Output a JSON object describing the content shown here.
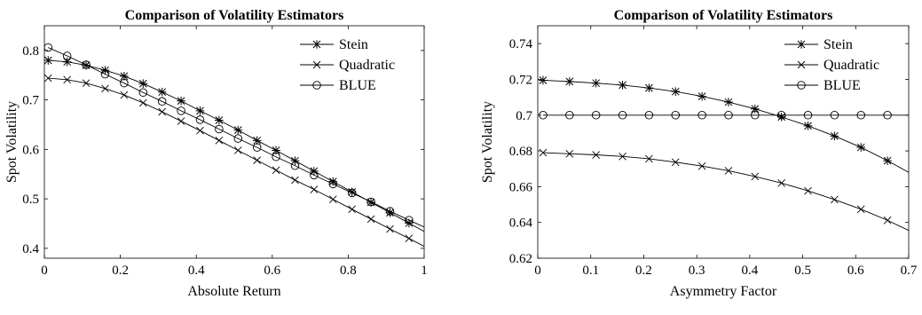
{
  "chart_data": [
    {
      "type": "line",
      "title": "Comparison of Volatility Estimators",
      "xlabel": "Absolute Return",
      "ylabel": "Spot Volatility",
      "xlim": [
        0,
        1
      ],
      "ylim": [
        0.38,
        0.85
      ],
      "xticks": [
        0,
        0.2,
        0.4,
        0.6,
        0.8,
        1
      ],
      "xtick_labels": [
        "0",
        "0.2",
        "0.4",
        "0.6",
        "0.8",
        "1"
      ],
      "yticks": [
        0.4,
        0.5,
        0.6,
        0.7,
        0.8
      ],
      "ytick_labels": [
        "0.4",
        "0.5",
        "0.6",
        "0.7",
        "0.8"
      ],
      "grid": false,
      "legend_position": "top-right",
      "series": [
        {
          "name": "Stein",
          "marker": "star",
          "x": [
            0.01,
            0.06,
            0.11,
            0.16,
            0.21,
            0.26,
            0.31,
            0.36,
            0.41,
            0.46,
            0.51,
            0.56,
            0.61,
            0.66,
            0.71,
            0.76,
            0.81,
            0.86,
            0.91,
            0.96,
            1.0
          ],
          "values": [
            0.78,
            0.777,
            0.77,
            0.76,
            0.748,
            0.733,
            0.716,
            0.698,
            0.678,
            0.659,
            0.639,
            0.618,
            0.598,
            0.577,
            0.556,
            0.535,
            0.514,
            0.493,
            0.472,
            0.451,
            0.434
          ]
        },
        {
          "name": "Quadratic",
          "marker": "x",
          "x": [
            0.01,
            0.06,
            0.11,
            0.16,
            0.21,
            0.26,
            0.31,
            0.36,
            0.41,
            0.46,
            0.51,
            0.56,
            0.61,
            0.66,
            0.71,
            0.76,
            0.81,
            0.86,
            0.91,
            0.96,
            1.0
          ],
          "values": [
            0.744,
            0.741,
            0.734,
            0.723,
            0.71,
            0.694,
            0.676,
            0.657,
            0.638,
            0.618,
            0.598,
            0.578,
            0.558,
            0.538,
            0.519,
            0.499,
            0.479,
            0.459,
            0.439,
            0.42,
            0.404
          ]
        },
        {
          "name": "BLUE",
          "marker": "circle",
          "x": [
            0.01,
            0.06,
            0.11,
            0.16,
            0.21,
            0.26,
            0.31,
            0.36,
            0.41,
            0.46,
            0.51,
            0.56,
            0.61,
            0.66,
            0.71,
            0.76,
            0.81,
            0.86,
            0.91,
            0.96,
            1.0
          ],
          "values": [
            0.806,
            0.789,
            0.771,
            0.752,
            0.734,
            0.715,
            0.697,
            0.678,
            0.66,
            0.641,
            0.622,
            0.604,
            0.585,
            0.567,
            0.548,
            0.53,
            0.512,
            0.494,
            0.475,
            0.457,
            0.443
          ]
        }
      ]
    },
    {
      "type": "line",
      "title": "Comparison of Volatility Estimators",
      "xlabel": "Asymmetry Factor",
      "ylabel": "Spot Volatility",
      "xlim": [
        0,
        0.7
      ],
      "ylim": [
        0.62,
        0.75
      ],
      "xticks": [
        0,
        0.1,
        0.2,
        0.3,
        0.4,
        0.5,
        0.6,
        0.7
      ],
      "xtick_labels": [
        "0",
        "0.1",
        "0.2",
        "0.3",
        "0.4",
        "0.5",
        "0.6",
        "0.7"
      ],
      "yticks": [
        0.62,
        0.64,
        0.66,
        0.68,
        0.7,
        0.72,
        0.74
      ],
      "ytick_labels": [
        "0.62",
        "0.64",
        "0.66",
        "0.68",
        "0.7",
        "0.72",
        "0.74"
      ],
      "grid": false,
      "legend_position": "top-right",
      "series": [
        {
          "name": "Stein",
          "marker": "star",
          "x": [
            0.01,
            0.06,
            0.11,
            0.16,
            0.21,
            0.26,
            0.31,
            0.36,
            0.41,
            0.46,
            0.51,
            0.56,
            0.61,
            0.66,
            0.7
          ],
          "values": [
            0.7195,
            0.7188,
            0.7179,
            0.7168,
            0.7152,
            0.7132,
            0.7105,
            0.7073,
            0.7035,
            0.699,
            0.694,
            0.6883,
            0.682,
            0.6745,
            0.668
          ]
        },
        {
          "name": "Quadratic",
          "marker": "x",
          "x": [
            0.01,
            0.06,
            0.11,
            0.16,
            0.21,
            0.26,
            0.31,
            0.36,
            0.41,
            0.46,
            0.51,
            0.56,
            0.61,
            0.66,
            0.7
          ],
          "values": [
            0.679,
            0.6784,
            0.6778,
            0.6769,
            0.6756,
            0.6737,
            0.6715,
            0.6689,
            0.6657,
            0.662,
            0.6577,
            0.6528,
            0.6474,
            0.6412,
            0.6355
          ]
        },
        {
          "name": "BLUE",
          "marker": "circle",
          "x": [
            0.01,
            0.06,
            0.11,
            0.16,
            0.21,
            0.26,
            0.31,
            0.36,
            0.41,
            0.46,
            0.51,
            0.56,
            0.61,
            0.66,
            0.7
          ],
          "values": [
            0.7,
            0.7,
            0.7,
            0.7,
            0.7,
            0.7,
            0.7,
            0.7,
            0.7,
            0.7,
            0.7,
            0.7,
            0.7,
            0.7,
            0.7
          ]
        }
      ]
    }
  ]
}
